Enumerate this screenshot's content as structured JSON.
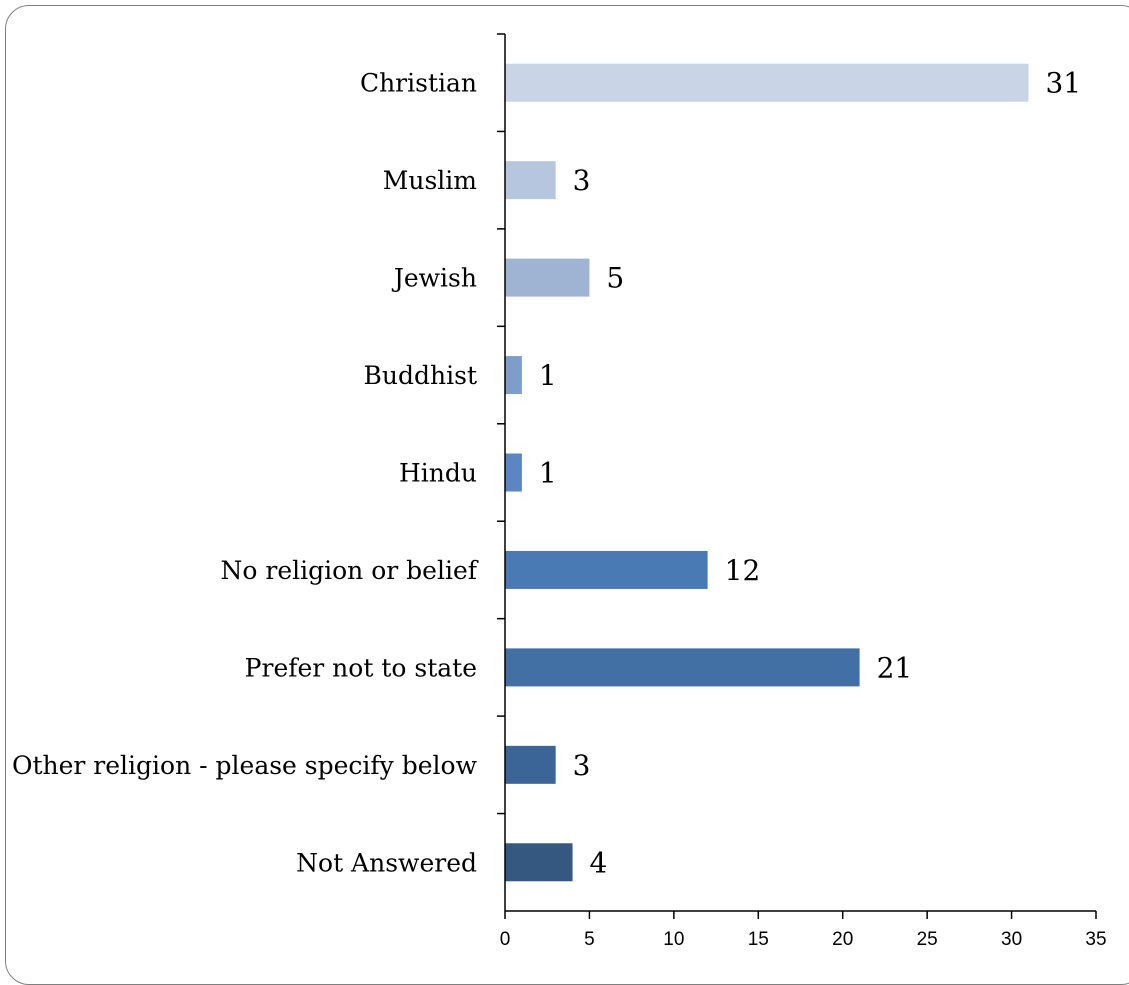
{
  "chart_data": {
    "type": "bar",
    "orientation": "horizontal",
    "categories": [
      "Christian",
      "Muslim",
      "Jewish",
      "Buddhist",
      "Hindu",
      "No religion or belief",
      "Prefer not to state",
      "Other religion - please specify below",
      "Not Answered"
    ],
    "values": [
      31,
      3,
      5,
      1,
      1,
      12,
      21,
      3,
      4
    ],
    "data_labels": [
      "31",
      "3",
      "5",
      "1",
      "1",
      "12",
      "21",
      "3",
      "4"
    ],
    "bar_colors": [
      "#c9d4e6",
      "#b7c6df",
      "#9fb3d3",
      "#7f9dcb",
      "#5b86c3",
      "#4a7ab4",
      "#426fa4",
      "#3c6597",
      "#34587f"
    ],
    "xlim": [
      0,
      35
    ],
    "xticks": [
      0,
      5,
      10,
      15,
      20,
      25,
      30,
      35
    ],
    "xtick_labels": [
      "0",
      "5",
      "10",
      "15",
      "20",
      "25",
      "30",
      "35"
    ],
    "title": "",
    "xlabel": "",
    "ylabel": "",
    "grid": false,
    "legend": "none"
  }
}
